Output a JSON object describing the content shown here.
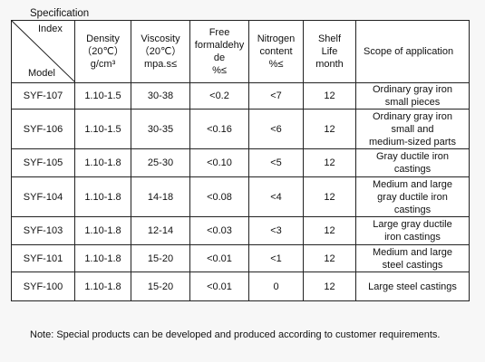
{
  "caption": "Specification",
  "header": {
    "index": "Index",
    "model": "Model",
    "density": [
      "Density",
      "（20℃）",
      "g/cm³"
    ],
    "viscosity": [
      "Viscosity",
      "（20℃）",
      "mpa.s≤"
    ],
    "formaldehyde": [
      "Free",
      "formaldehy",
      "de",
      "%≤"
    ],
    "nitrogen": [
      "Nitrogen",
      "content",
      "%≤"
    ],
    "shelf_life": [
      "Shelf",
      "Life",
      "month"
    ],
    "scope": "Scope of application"
  },
  "rows": [
    {
      "model": "SYF-107",
      "density": "1.10-1.5",
      "viscosity": "30-38",
      "formaldehyde": "<0.2",
      "nitrogen": "<7",
      "shelf_life": "12",
      "scope": [
        "Ordinary gray iron",
        "small pieces"
      ]
    },
    {
      "model": "SYF-106",
      "density": "1.10-1.5",
      "viscosity": "30-35",
      "formaldehyde": "<0.16",
      "nitrogen": "<6",
      "shelf_life": "12",
      "scope": [
        "Ordinary gray iron",
        "small and",
        "medium-sized parts"
      ]
    },
    {
      "model": "SYF-105",
      "density": "1.10-1.8",
      "viscosity": "25-30",
      "formaldehyde": "<0.10",
      "nitrogen": "<5",
      "shelf_life": "12",
      "scope": [
        "Gray ductile iron",
        "castings"
      ]
    },
    {
      "model": "SYF-104",
      "density": "1.10-1.8",
      "viscosity": "14-18",
      "formaldehyde": "<0.08",
      "nitrogen": "<4",
      "shelf_life": "12",
      "scope": [
        "Medium and large",
        "gray ductile iron",
        "castings"
      ]
    },
    {
      "model": "SYF-103",
      "density": "1.10-1.8",
      "viscosity": "12-14",
      "formaldehyde": "<0.03",
      "nitrogen": "<3",
      "shelf_life": "12",
      "scope": [
        "Large gray ductile",
        "iron castings"
      ]
    },
    {
      "model": "SYF-101",
      "density": "1.10-1.8",
      "viscosity": "15-20",
      "formaldehyde": "<0.01",
      "nitrogen": "<1",
      "shelf_life": "12",
      "scope": [
        "Medium and large",
        "steel castings"
      ]
    },
    {
      "model": "SYF-100",
      "density": "1.10-1.8",
      "viscosity": "15-20",
      "formaldehyde": "<0.01",
      "nitrogen": "0",
      "shelf_life": "12",
      "scope": [
        "Large steel castings"
      ]
    }
  ],
  "note": "Note: Special products can be developed and produced according to customer requirements."
}
